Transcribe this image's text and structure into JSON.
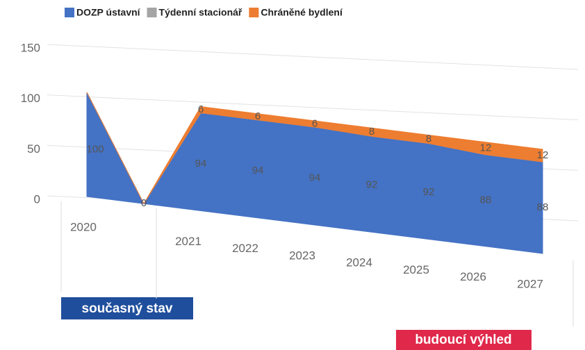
{
  "chart_data": {
    "type": "area",
    "stacked": true,
    "categories": [
      "2020",
      null,
      "2021",
      "2022",
      "2023",
      "2024",
      "2025",
      "2026",
      "2027"
    ],
    "series": [
      {
        "name": "DOZP ústavní",
        "color": "#4472c4",
        "data_labels": true,
        "values": [
          100,
          0,
          94,
          94,
          94,
          92,
          92,
          88,
          88
        ]
      },
      {
        "name": "Týdenní stacionář",
        "color": "#a5a5a5",
        "data_labels": false,
        "values": [
          0,
          0,
          0,
          0,
          0,
          0,
          0,
          0,
          0
        ]
      },
      {
        "name": "Chráněné bydlení",
        "color": "#ed7d31",
        "data_labels": true,
        "values": [
          null,
          null,
          6,
          6,
          6,
          8,
          8,
          12,
          12
        ]
      }
    ],
    "ylim": [
      0,
      150
    ],
    "yticks": [
      0,
      50,
      100,
      150
    ],
    "grid": true,
    "legend": "top",
    "annotations": [
      "současný stav",
      "budoucí výhled"
    ]
  }
}
